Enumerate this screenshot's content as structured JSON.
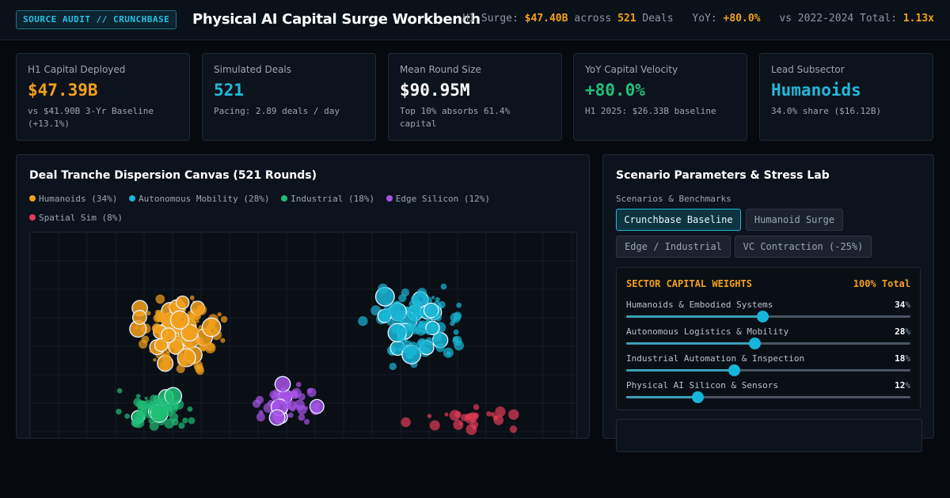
{
  "header": {
    "badge": "SOURCE AUDIT // CRUNCHBASE",
    "title": "Physical AI Capital Surge Workbench",
    "stats": {
      "surge_label": "H1 Surge:",
      "surge_value": "$47.40B",
      "across_label": "across",
      "deals_value": "521",
      "deals_label": "Deals",
      "yoy_label": "YoY:",
      "yoy_value": "+80.0%",
      "vs_label": "vs 2022-2024 Total:",
      "vs_value": "1.13x"
    }
  },
  "kpis": [
    {
      "label": "H1 Capital Deployed",
      "value": "$47.39B",
      "sub": "vs $41.90B 3-Yr Baseline (+13.1%)",
      "color": "#f2a01b"
    },
    {
      "label": "Simulated Deals",
      "value": "521",
      "sub": "Pacing: 2.89 deals / day",
      "color": "#22b8d8"
    },
    {
      "label": "Mean Round Size",
      "value": "$90.95M",
      "sub": "Top 10% absorbs 61.4% capital",
      "color": "#ffffff"
    },
    {
      "label": "YoY Capital Velocity",
      "value": "+80.0%",
      "sub": "H1 2025: $26.33B baseline",
      "color": "#20c07a"
    },
    {
      "label": "Lead Subsector",
      "value": "Humanoids",
      "sub": "34.0% share ($16.12B)",
      "color": "#22b8d8"
    }
  ],
  "canvas_panel": {
    "title": "Deal Tranche Dispersion Canvas (521 Rounds)",
    "legend": [
      {
        "label": "Humanoids (34%)",
        "color": "#f2a01b"
      },
      {
        "label": "Autonomous Mobility (28%)",
        "color": "#1ab6d6"
      },
      {
        "label": "Industrial (18%)",
        "color": "#1fbf78"
      },
      {
        "label": "Edge Silicon (12%)",
        "color": "#a653e8"
      },
      {
        "label": "Spatial Sim (8%)",
        "color": "#e23c5a"
      }
    ]
  },
  "scenario_panel": {
    "title": "Scenario Parameters & Stress Lab",
    "section_label": "Scenarios & Benchmarks",
    "buttons": [
      {
        "label": "Crunchbase Baseline",
        "active": true
      },
      {
        "label": "Humanoid Surge",
        "active": false
      },
      {
        "label": "Edge / Industrial",
        "active": false
      },
      {
        "label": "VC Contraction (-25%)",
        "active": false
      }
    ],
    "weights": {
      "heading": "SECTOR CAPITAL WEIGHTS",
      "total": "100% Total",
      "unit": "%",
      "rows": [
        {
          "name": "Humanoids & Embodied Systems",
          "value": "34",
          "level": 0.48
        },
        {
          "name": "Autonomous Logistics & Mobility",
          "value": "28",
          "level": 0.45
        },
        {
          "name": "Industrial Automation & Inspection",
          "value": "18",
          "level": 0.38
        },
        {
          "name": "Physical AI Silicon & Sensors",
          "value": "12",
          "level": 0.25
        }
      ]
    }
  }
}
